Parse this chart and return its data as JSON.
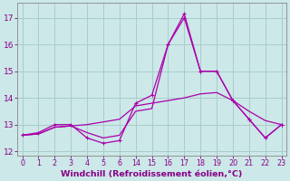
{
  "xlabel": "Windchill (Refroidissement éolien,°C)",
  "background_color": "#cce8e8",
  "grid_color": "#aacccc",
  "line_color": "#aa00aa",
  "yticks": [
    12,
    13,
    14,
    15,
    16,
    17
  ],
  "xticks_left": [
    0,
    1,
    2,
    3,
    4,
    5,
    6
  ],
  "xticks_right": [
    14,
    15,
    16,
    17,
    18,
    19,
    20,
    21,
    22,
    23
  ],
  "line1_x": [
    0,
    1,
    2,
    3,
    4,
    5,
    6,
    14,
    15,
    16,
    17,
    18,
    19,
    20,
    21,
    22,
    23
  ],
  "line1_y": [
    12.6,
    12.7,
    13.0,
    13.0,
    12.5,
    12.3,
    12.4,
    13.8,
    14.1,
    16.0,
    17.0,
    15.0,
    15.0,
    13.9,
    13.2,
    12.5,
    13.0
  ],
  "line2_x": [
    0,
    1,
    2,
    3,
    4,
    5,
    6,
    14,
    15,
    16,
    17,
    18,
    19,
    20,
    21,
    22,
    23
  ],
  "line2_y": [
    12.6,
    12.65,
    12.9,
    12.95,
    13.0,
    13.1,
    13.2,
    13.7,
    13.8,
    13.9,
    14.0,
    14.15,
    14.2,
    13.9,
    13.5,
    13.15,
    13.0
  ],
  "line3_x": [
    0,
    1,
    2,
    3,
    4,
    5,
    6,
    14,
    15,
    16,
    17,
    18,
    19,
    20,
    21,
    22,
    23
  ],
  "line3_y": [
    12.6,
    12.65,
    12.9,
    12.95,
    12.7,
    12.5,
    12.6,
    13.5,
    13.6,
    16.0,
    17.15,
    15.0,
    15.0,
    13.9,
    13.2,
    12.5,
    13.0
  ],
  "markers_line1_x": [
    0,
    1,
    2,
    3,
    4,
    5,
    6,
    14,
    15,
    16,
    17,
    18,
    19,
    20,
    21,
    22,
    23
  ],
  "markers_line1_y": [
    12.6,
    12.7,
    13.0,
    13.0,
    12.5,
    12.3,
    12.4,
    13.8,
    14.1,
    16.0,
    17.0,
    15.0,
    15.0,
    13.9,
    13.2,
    12.5,
    13.0
  ],
  "markers_line3_x": [
    16,
    17,
    18,
    19,
    20,
    21,
    22,
    23
  ],
  "markers_line3_y": [
    16.0,
    17.15,
    15.0,
    15.0,
    13.9,
    13.2,
    12.5,
    13.0
  ],
  "ylim_min": 11.85,
  "ylim_max": 17.55
}
